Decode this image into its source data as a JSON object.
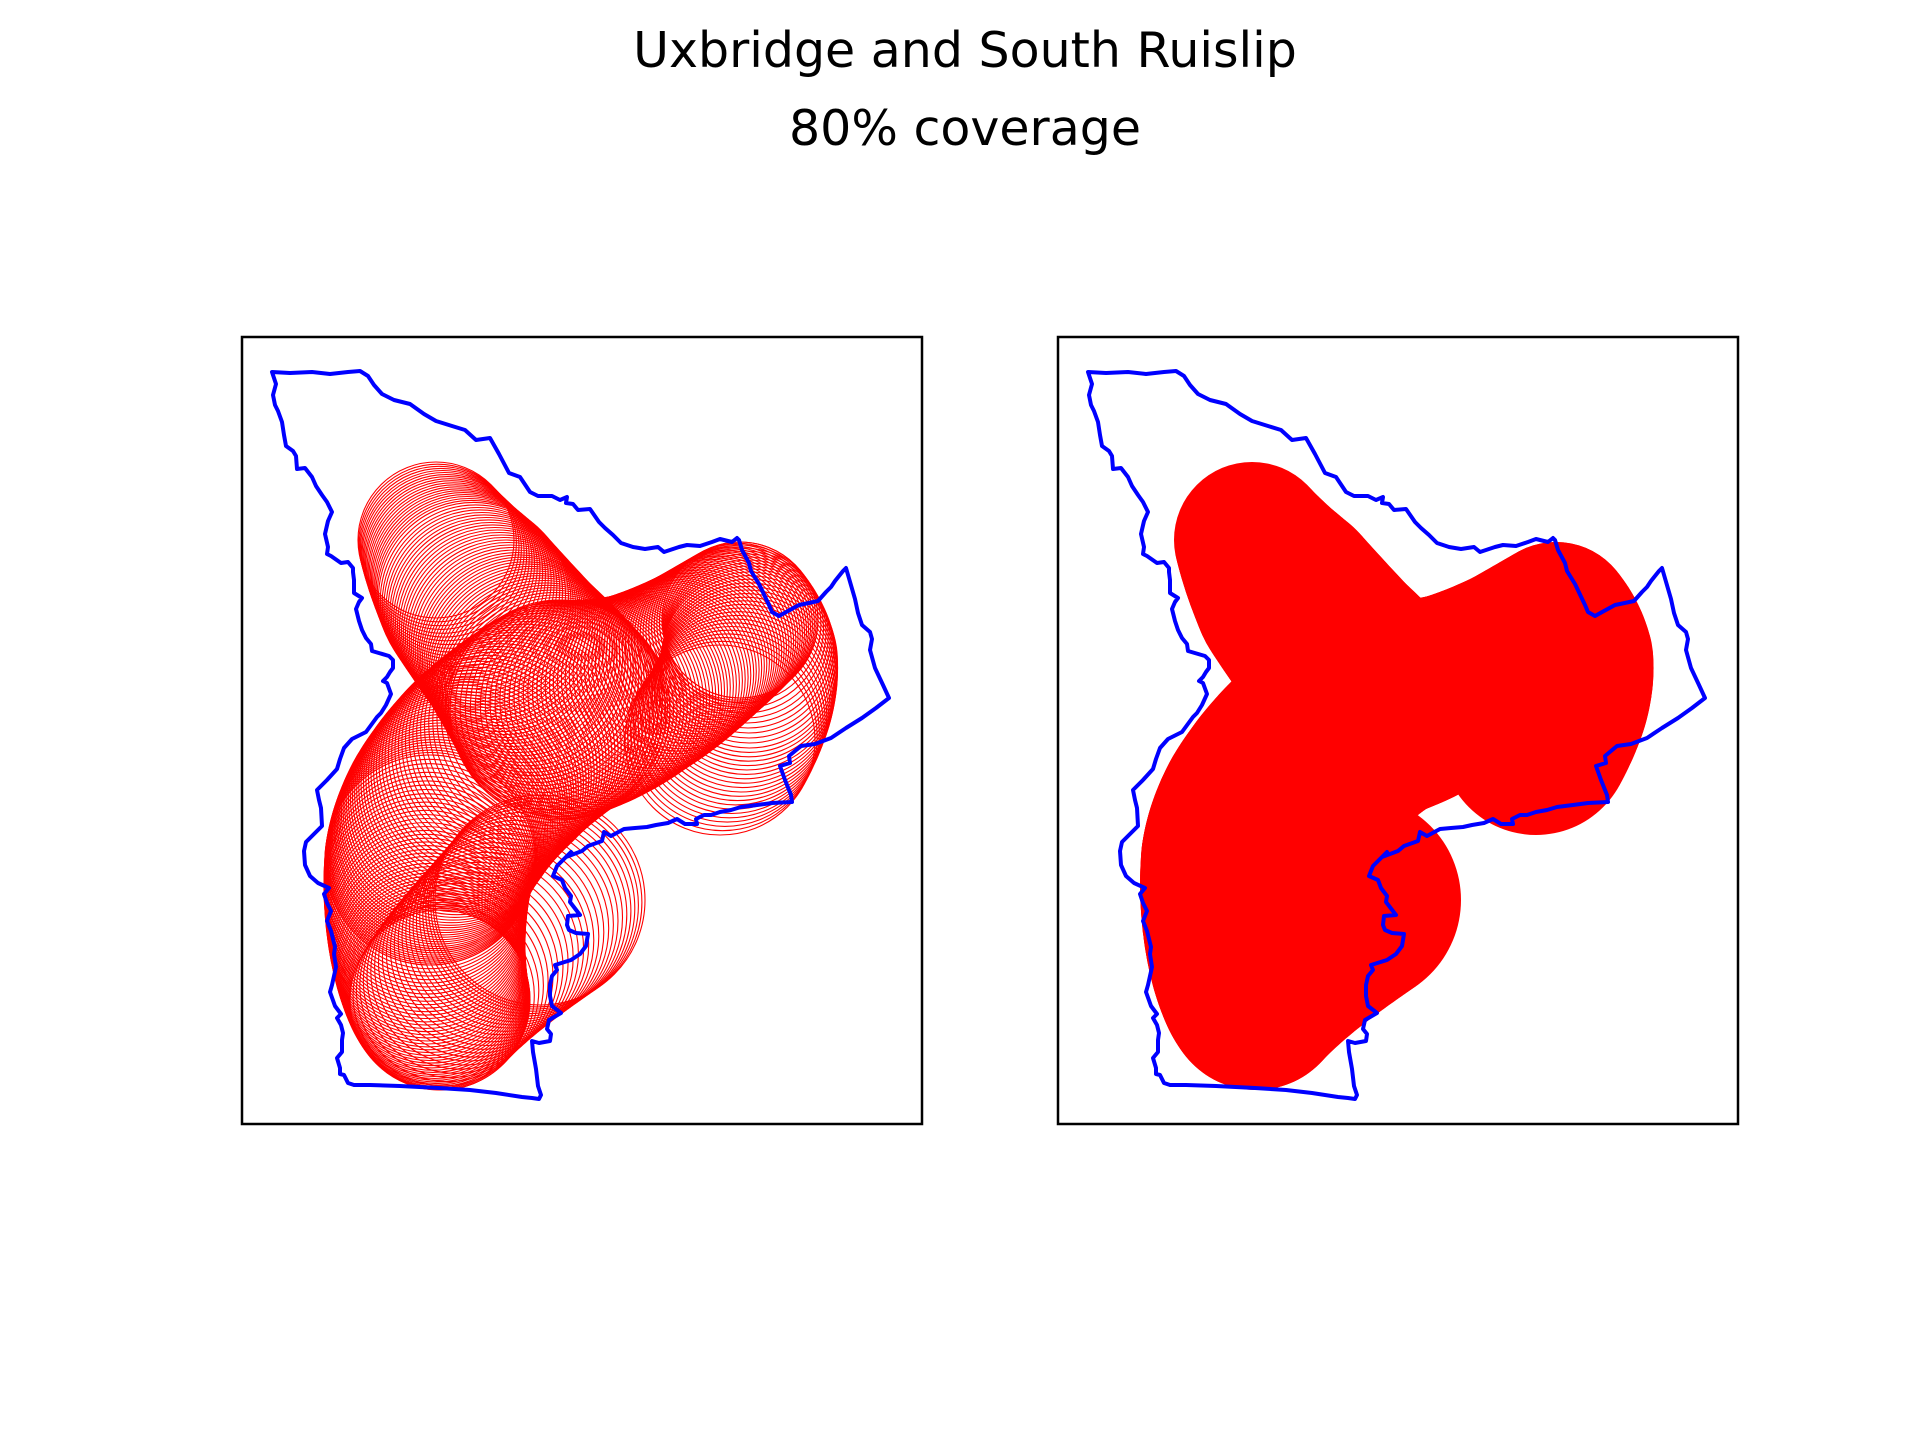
{
  "figure": {
    "title": "Uxbridge and South Ruislip",
    "subtitle": "80% coverage"
  },
  "panels": [
    {
      "style": "outline"
    },
    {
      "style": "filled"
    }
  ],
  "colors": {
    "boundary": "#0000ff",
    "coverage": "#ff0000",
    "frame": "#000000",
    "background": "#ffffff"
  }
}
